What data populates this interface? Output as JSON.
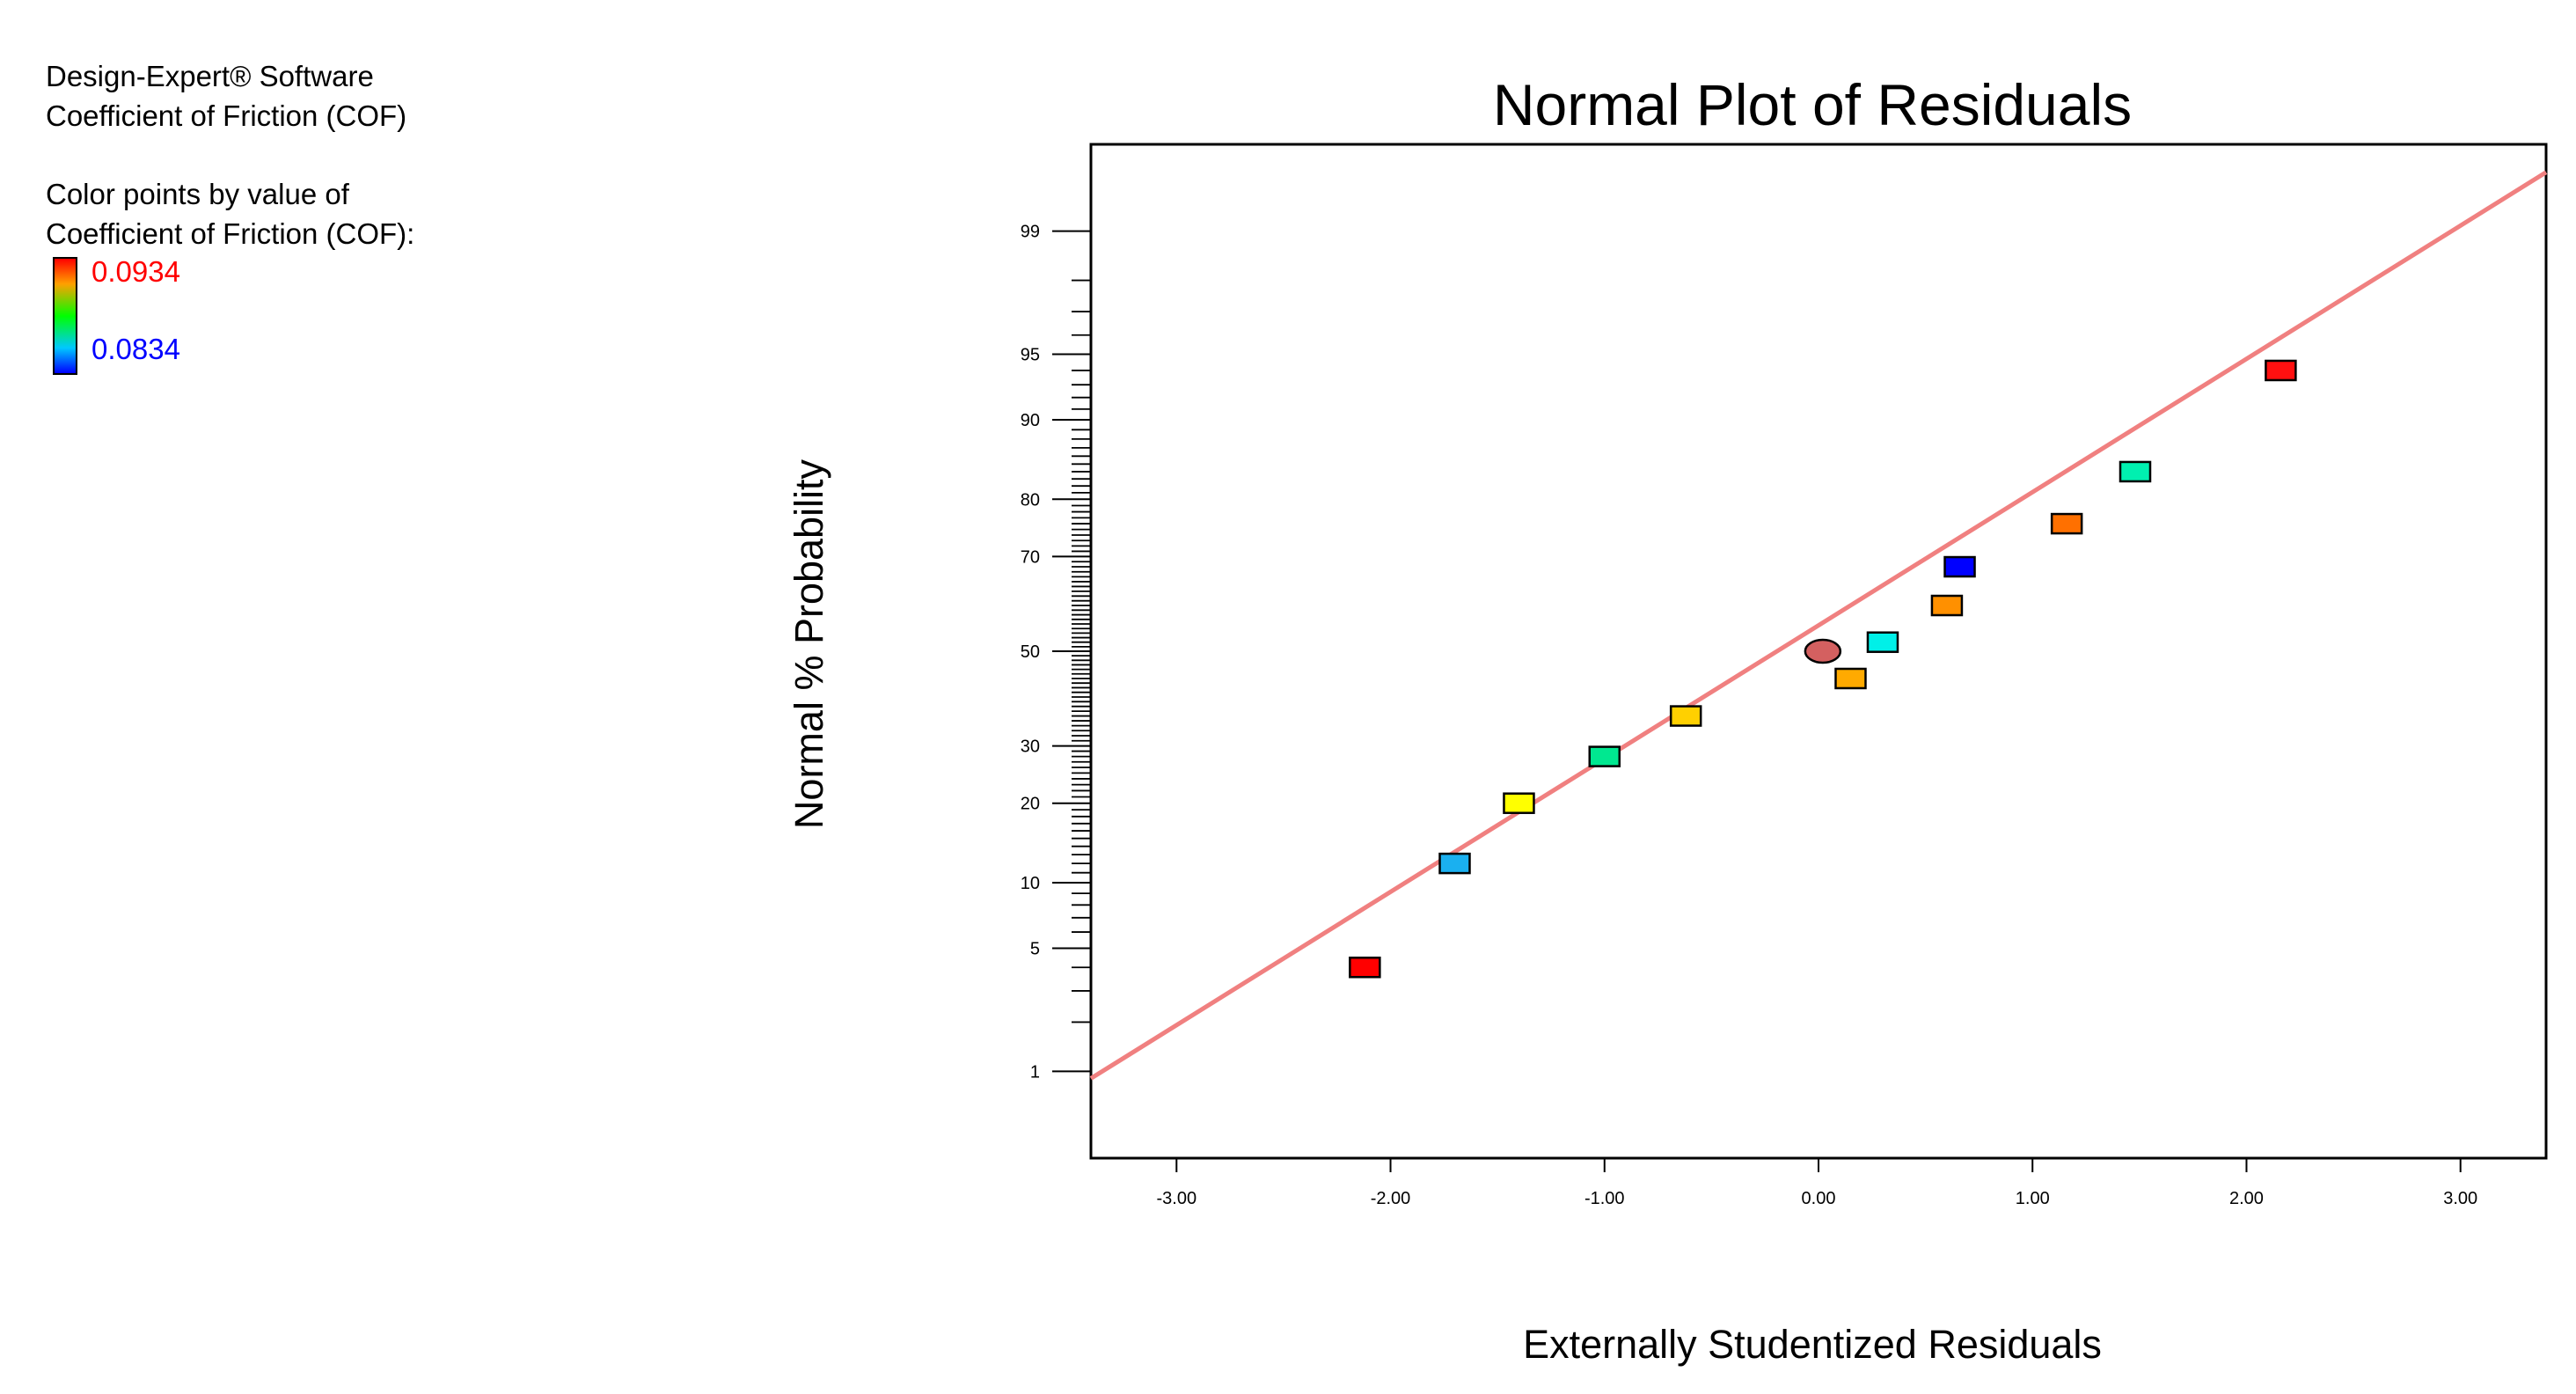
{
  "sidebar": {
    "software": "Design-Expert® Software",
    "response": "Coefficient of Friction (COF)",
    "color_by_line1": "Color points by value of",
    "color_by_line2": "Coefficient of Friction (COF):",
    "scale_max": "0.0934",
    "scale_min": "0.0834",
    "colors": {
      "max": "#ff0000",
      "min": "#0000ff"
    }
  },
  "chart_data": {
    "type": "scatter",
    "title": "Normal Plot of Residuals",
    "xlabel": "Externally Studentized Residuals",
    "ylabel": "Normal % Probability",
    "xlim": [
      -3.4,
      3.4
    ],
    "x_ticks": [
      -3,
      -2,
      -1,
      0,
      1,
      2,
      3
    ],
    "x_tick_labels": [
      "-3.00",
      "-2.00",
      "-1.00",
      "0.00",
      "1.00",
      "2.00",
      "3.00"
    ],
    "y_scale": "normal-probability",
    "ylim": [
      0.25,
      99.75
    ],
    "y_ticks": [
      1,
      5,
      10,
      20,
      30,
      50,
      70,
      80,
      90,
      95,
      99
    ],
    "y_tick_labels": [
      "1",
      "5",
      "10",
      "20",
      "30",
      "50",
      "70",
      "80",
      "90",
      "95",
      "99"
    ],
    "y_minor_ticks": [
      2,
      3,
      4,
      6,
      7,
      8,
      9,
      11,
      12,
      13,
      14,
      15,
      16,
      17,
      18,
      19,
      21,
      22,
      23,
      24,
      25,
      26,
      27,
      28,
      29,
      31,
      32,
      33,
      34,
      35,
      36,
      37,
      38,
      39,
      40,
      41,
      42,
      43,
      44,
      45,
      46,
      47,
      48,
      49,
      51,
      52,
      53,
      54,
      55,
      56,
      57,
      58,
      59,
      60,
      61,
      62,
      63,
      64,
      65,
      66,
      67,
      68,
      69,
      71,
      72,
      73,
      74,
      75,
      76,
      77,
      78,
      79,
      81,
      82,
      83,
      84,
      85,
      86,
      87,
      88,
      89,
      91,
      92,
      93,
      94,
      96,
      97,
      98
    ],
    "fit_line": {
      "color": "#f08080",
      "x": [
        -3.4,
        3.4
      ],
      "p": [
        0.9,
        99.6
      ]
    },
    "points": [
      {
        "x": -2.12,
        "p": 4.0,
        "color": "#ff0000",
        "shape": "square"
      },
      {
        "x": -1.7,
        "p": 12.0,
        "color": "#1ab0f0",
        "shape": "square"
      },
      {
        "x": -1.4,
        "p": 20.0,
        "color": "#ffff00",
        "shape": "square"
      },
      {
        "x": -1.0,
        "p": 28.0,
        "color": "#00e890",
        "shape": "square"
      },
      {
        "x": -0.62,
        "p": 36.0,
        "color": "#ffd000",
        "shape": "square"
      },
      {
        "x": 0.02,
        "p": 50.0,
        "color": "#d46060",
        "shape": "circle"
      },
      {
        "x": 0.15,
        "p": 44.0,
        "color": "#ffaa00",
        "shape": "square"
      },
      {
        "x": 0.3,
        "p": 52.0,
        "color": "#00f0e8",
        "shape": "square"
      },
      {
        "x": 0.6,
        "p": 60.0,
        "color": "#ff9000",
        "shape": "square"
      },
      {
        "x": 0.66,
        "p": 68.0,
        "color": "#0000ff",
        "shape": "square"
      },
      {
        "x": 1.16,
        "p": 76.0,
        "color": "#ff7000",
        "shape": "square"
      },
      {
        "x": 1.48,
        "p": 84.0,
        "color": "#00f0b0",
        "shape": "square"
      },
      {
        "x": 2.16,
        "p": 94.0,
        "color": "#ff1010",
        "shape": "square"
      }
    ]
  }
}
